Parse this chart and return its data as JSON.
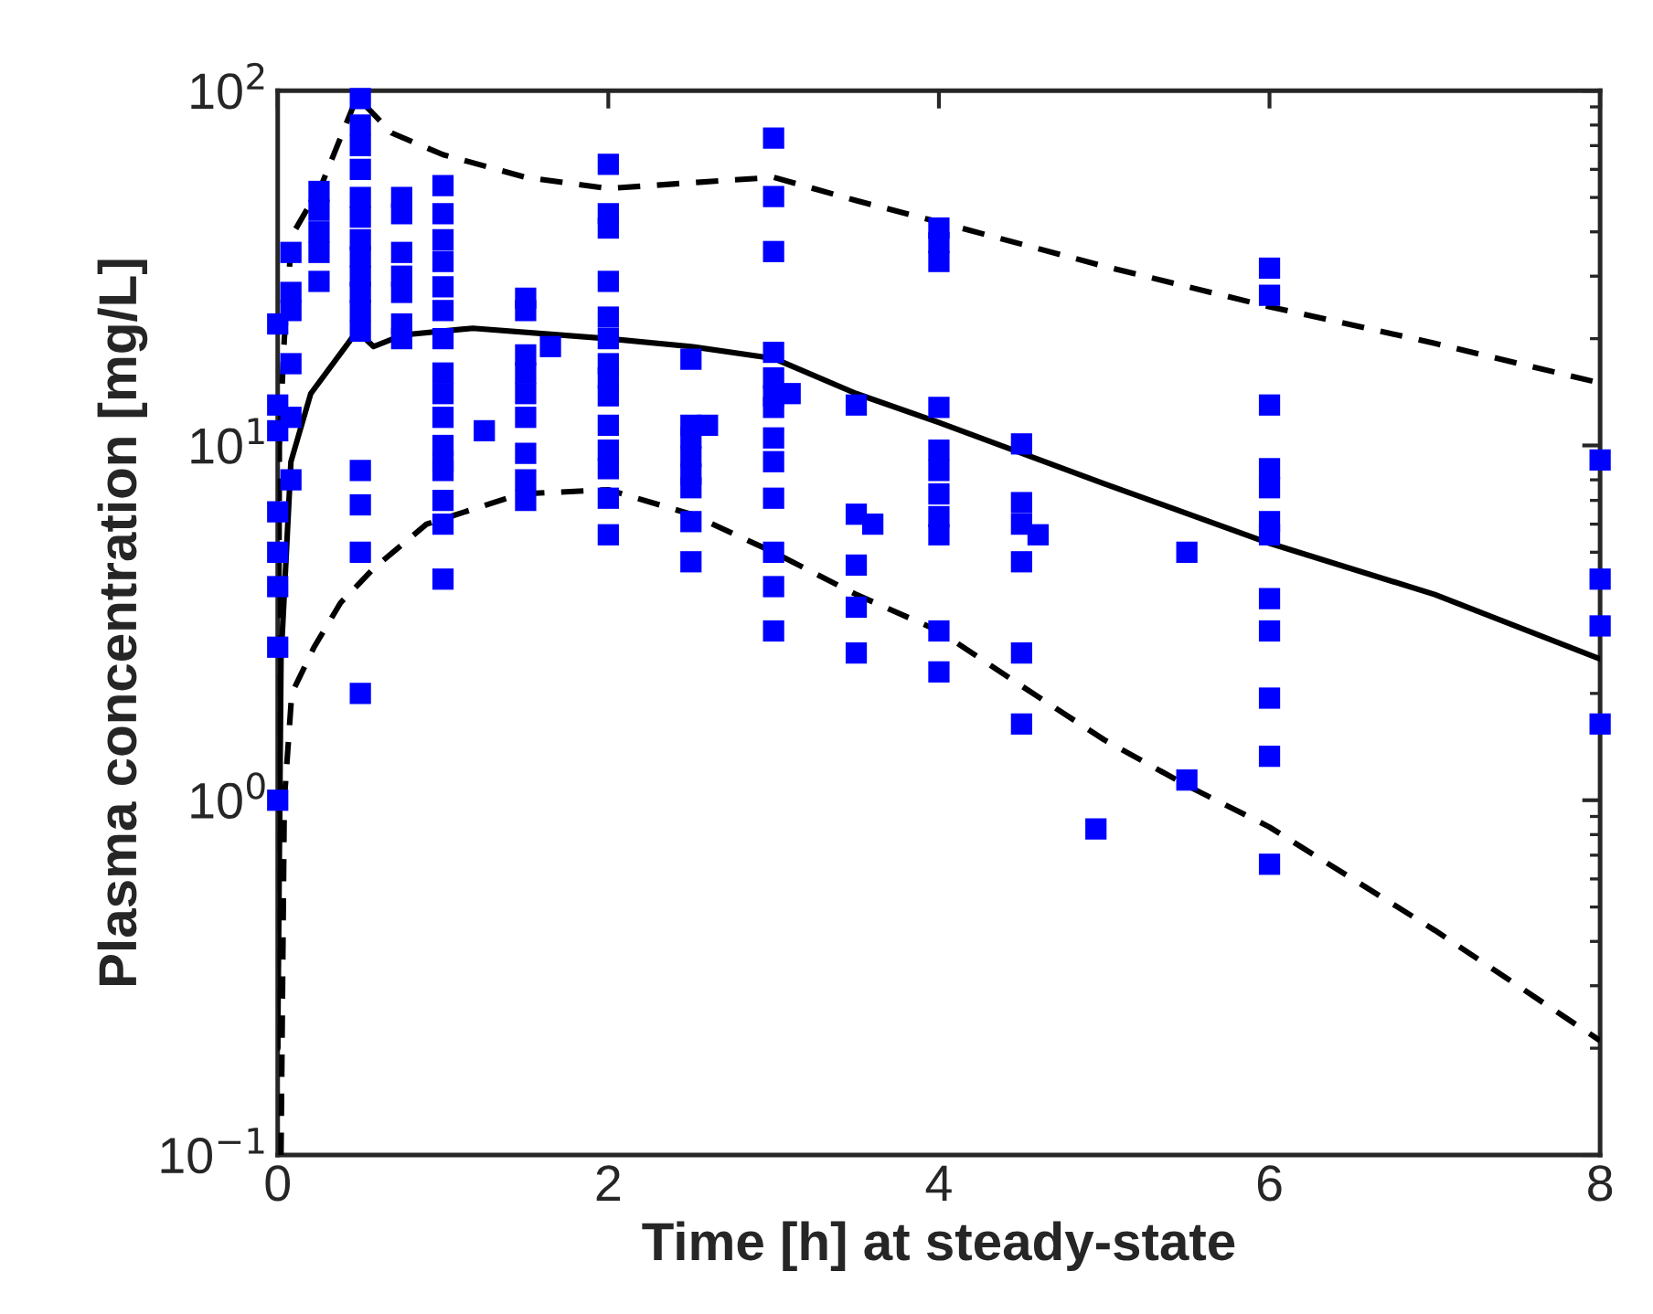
{
  "chart_data": {
    "type": "scatter",
    "xlabel": "Time [h] at steady-state",
    "ylabel": "Plasma concentration [mg/L]",
    "log": "y",
    "grid": false,
    "xlim": [
      0,
      8
    ],
    "xticks": [
      0,
      2,
      4,
      6,
      8
    ],
    "ylim": [
      0.1,
      100
    ],
    "yticks": [
      {
        "value": 0.1,
        "label": "10$^{−1}$"
      },
      {
        "value": 1,
        "label": "10$^{0}$"
      },
      {
        "value": 10,
        "label": "10$^{1}$"
      },
      {
        "value": 100,
        "label": "10$^{2}$"
      }
    ],
    "series": [
      {
        "color": "#0000ff",
        "marker": "square",
        "x": [
          0,
          0,
          0,
          0,
          0,
          0,
          0,
          0,
          0.08,
          0.08,
          0.08,
          0.08,
          0.08,
          0.08,
          0.25,
          0.25,
          0.25,
          0.25,
          0.25,
          0.5,
          0.5,
          0.5,
          0.5,
          0.5,
          0.5,
          0.5,
          0.5,
          0.5,
          0.5,
          0.5,
          0.5,
          0.5,
          0.5,
          0.5,
          0.5,
          0.75,
          0.75,
          0.75,
          0.75,
          0.75,
          0.75,
          0.75,
          1,
          1,
          1,
          1,
          1,
          1,
          1,
          1,
          1,
          1,
          1,
          1,
          1,
          1,
          1,
          1,
          1.25,
          1.5,
          1.5,
          1.5,
          1.5,
          1.5,
          1.5,
          1.5,
          1.5,
          1.5,
          1.65,
          2,
          2,
          2,
          2,
          2,
          2,
          2,
          2,
          2,
          2,
          2,
          2,
          2,
          2,
          2.5,
          2.5,
          2.5,
          2.5,
          2.5,
          2.5,
          2.5,
          2.5,
          2.6,
          3,
          3,
          3,
          3,
          3,
          3,
          3,
          3,
          3,
          3,
          3,
          3,
          3,
          3.1,
          3.5,
          3.5,
          3.5,
          3.5,
          3.5,
          3.6,
          4,
          4,
          4,
          4,
          4,
          4,
          4,
          4,
          4,
          4,
          4,
          4.5,
          4.5,
          4.5,
          4.5,
          4.5,
          4.5,
          4.6,
          4.95,
          5.5,
          5.5,
          6,
          6,
          6,
          6,
          6,
          6,
          6,
          6,
          6,
          6,
          6,
          6,
          8,
          8,
          8,
          8
        ],
        "values": [
          22,
          13,
          11,
          6.5,
          5,
          4,
          2.7,
          1.0,
          35,
          27,
          24,
          17,
          12,
          8,
          52,
          46,
          40,
          35,
          29,
          95,
          80,
          70,
          60,
          50,
          44,
          38,
          34,
          30,
          27,
          24,
          21,
          8.5,
          6.8,
          5,
          2,
          50,
          45,
          35,
          30,
          27,
          22,
          20,
          54,
          45,
          38,
          33,
          28,
          24,
          20,
          16,
          14,
          12,
          10,
          9,
          8.5,
          7,
          6,
          4.2,
          11,
          26,
          24,
          18,
          16,
          14,
          12,
          9.5,
          8,
          7,
          19,
          62,
          45,
          41,
          29,
          23,
          20,
          17,
          15.5,
          13.8,
          11.4,
          9.7,
          8.6,
          7.1,
          5.6,
          17.5,
          11.4,
          10.5,
          9.3,
          8.3,
          7.6,
          6.1,
          4.7,
          11.4,
          73.5,
          50.3,
          35.2,
          18.3,
          15.5,
          13.8,
          12.8,
          10.5,
          9,
          7.1,
          5,
          4,
          3,
          14,
          13,
          6.4,
          4.6,
          3.5,
          2.6,
          6,
          41,
          37.3,
          33,
          12.8,
          9.7,
          8.5,
          7.3,
          6.3,
          5.6,
          3,
          2.3,
          10.1,
          6.9,
          6,
          4.7,
          2.6,
          1.64,
          5.6,
          0.83,
          5,
          1.14,
          31.6,
          26.5,
          13,
          8.6,
          7.6,
          6.1,
          5.6,
          3.7,
          3,
          1.94,
          1.33,
          0.66,
          9.1,
          4.2,
          3.1,
          1.64
        ]
      },
      {
        "type": "line",
        "color": "#000000",
        "line_style": "solid",
        "x": [
          0,
          0.02,
          0.08,
          0.2,
          0.48,
          0.58,
          0.76,
          1.18,
          2,
          2.5,
          3,
          3.5,
          4,
          5,
          6,
          7,
          8
        ],
        "values": [
          0.2,
          2.5,
          9,
          14,
          21,
          19,
          20.5,
          21.4,
          20,
          19,
          17.6,
          14,
          11.6,
          7.8,
          5.3,
          3.8,
          2.5
        ]
      },
      {
        "type": "line",
        "color": "#000000",
        "line_style": "dashed",
        "x": [
          0,
          0.01,
          0.04,
          0.085,
          0.27,
          0.48,
          0.69,
          1,
          1.5,
          2,
          2.5,
          3,
          3.5,
          4,
          5,
          6,
          7,
          8
        ],
        "values": [
          0.2,
          10,
          20,
          39,
          55,
          96,
          76,
          66,
          57,
          53,
          55,
          57,
          49,
          42.6,
          32,
          24.6,
          19.4,
          15
        ]
      },
      {
        "type": "line",
        "color": "#000000",
        "line_style": "dashed",
        "x": [
          0.02,
          0.04,
          0.085,
          0.22,
          0.38,
          0.58,
          0.9,
          1.47,
          2,
          2.5,
          3,
          3.5,
          4,
          4.5,
          5,
          5.5,
          6,
          7,
          8
        ],
        "values": [
          0.1,
          1.0,
          2.0,
          2.7,
          3.6,
          4.5,
          6.0,
          7.3,
          7.5,
          6.4,
          5.0,
          3.8,
          3.0,
          2.1,
          1.48,
          1.1,
          0.84,
          0.43,
          0.21
        ]
      }
    ]
  }
}
